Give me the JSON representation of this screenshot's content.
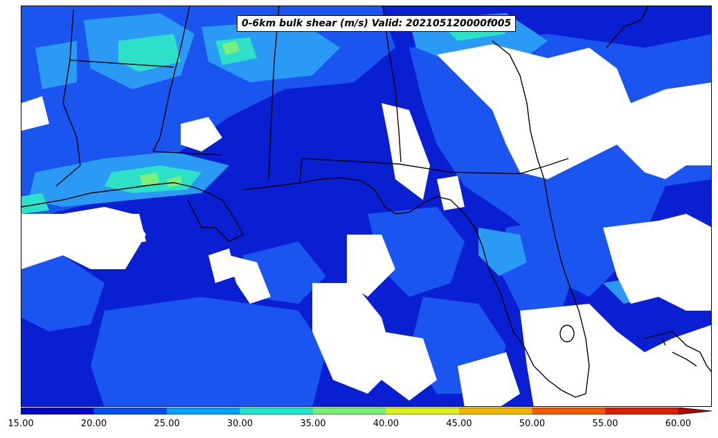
{
  "title": "0-6km bulk shear (m/s) Valid: 202105120000f005",
  "colorbar": {
    "ticks": [
      "15.00",
      "20.00",
      "25.00",
      "30.00",
      "35.00",
      "40.00",
      "45.00",
      "50.00",
      "55.00",
      "60.00"
    ],
    "colors": [
      "#0000c8",
      "#0050f0",
      "#00a0ff",
      "#1ee6c8",
      "#78f078",
      "#dcf01e",
      "#f0b400",
      "#f05a00",
      "#dc1e00",
      "#b40000"
    ],
    "extend": "max"
  },
  "map": {
    "region": "US Gulf Coast and Gulf of Mexico",
    "colors": {
      "below_min": "#ffffff",
      "level_15_20": "#0000c8",
      "level_20_25": "#0050f0",
      "level_25_30": "#00a0ff",
      "level_30_35": "#1ee6c8",
      "level_35_40": "#78f078",
      "level_40_45": "#dcf01e"
    }
  }
}
